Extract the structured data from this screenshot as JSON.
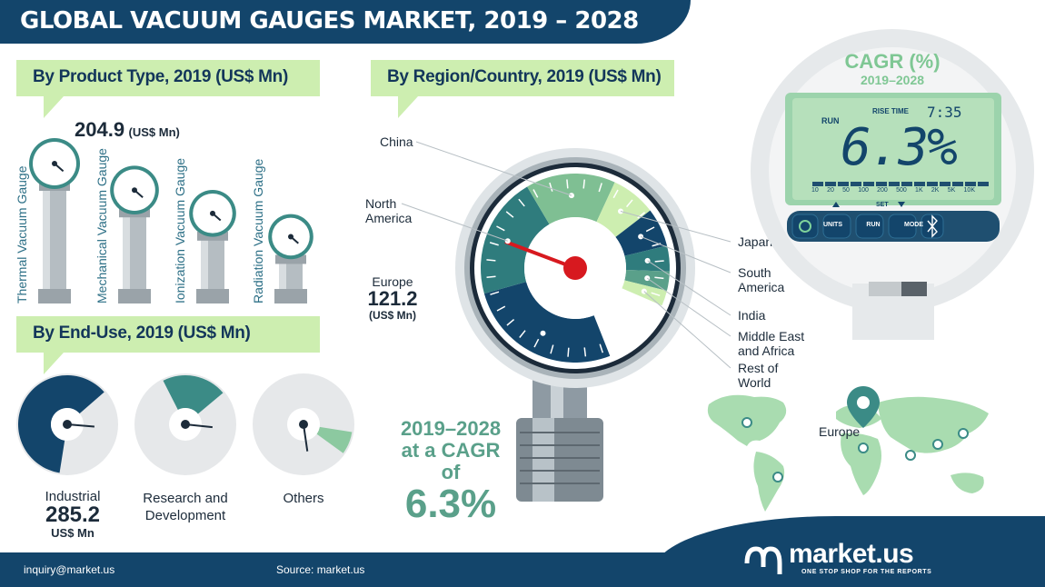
{
  "title": "GLOBAL VACUUM GAUGES MARKET, 2019 – 2028",
  "sections": {
    "product_type": "By Product Type, 2019 (US$ Mn)",
    "region": "By Region/Country, 2019 (US$ Mn)",
    "end_use": "By End-Use, 2019 (US$ Mn)"
  },
  "product_callout": {
    "value": "204.9",
    "unit": "(US$ Mn)"
  },
  "end_use_callout": {
    "label": "Industrial",
    "value": "285.2",
    "unit": "US$ Mn"
  },
  "region_callout": {
    "label": "Europe",
    "value": "121.2",
    "unit": "(US$ Mn)"
  },
  "cagr_text": {
    "line1": "2019–2028",
    "line2": "at a CAGR of",
    "value": "6.3%"
  },
  "device": {
    "title": "CAGR (%)",
    "subtitle": "2019–2028",
    "display": "6.3%",
    "run": "RUN",
    "rise_time": "RISE TIME",
    "time": "7:35",
    "scale": [
      "10",
      "20",
      "50",
      "100",
      "200",
      "500",
      "1K",
      "2K",
      "5K",
      "10K"
    ],
    "set": "SET",
    "buttons": [
      "UNITS",
      "RUN",
      "MODE"
    ]
  },
  "map": {
    "highlight": "Europe"
  },
  "footer": {
    "email": "inquiry@market.us",
    "source": "Source: market.us",
    "brand": "market.us",
    "tagline": "ONE STOP SHOP FOR THE REPORTS"
  },
  "colors": {
    "navy": "#13456b",
    "teal": "#3b8b86",
    "lightgreen": "#cdeeb0",
    "red": "#d7191f",
    "green": "#8cc9a0"
  },
  "chart_data": [
    {
      "type": "bar",
      "title": "By Product Type, 2019 (US$ Mn)",
      "categories": [
        "Thermal Vacuum Gauge",
        "Mechanical Vacuum Gauge",
        "Ionization Vacuum Gauge",
        "Radiation Vacuum Gauge"
      ],
      "values": [
        204.9,
        165,
        130,
        95
      ]
    },
    {
      "type": "pie",
      "title": "By End-Use, 2019 (US$ Mn)",
      "categories": [
        "Industrial",
        "Research and Development",
        "Others"
      ],
      "values": [
        285.2,
        100,
        35
      ]
    },
    {
      "type": "pie",
      "title": "By Region/Country, 2019 (US$ Mn)",
      "categories": [
        "Europe",
        "North America",
        "China",
        "Japan",
        "South America",
        "India",
        "Middle East and Africa",
        "Rest of World"
      ],
      "values": [
        121.2,
        95,
        70,
        35,
        30,
        20,
        15,
        12
      ]
    }
  ]
}
